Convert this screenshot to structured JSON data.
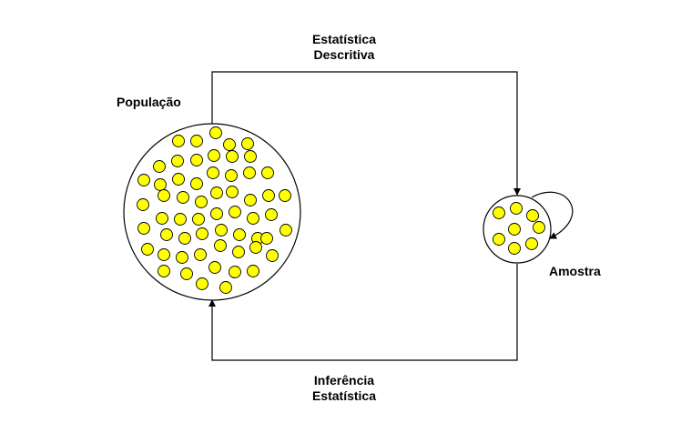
{
  "labels": {
    "descriptive_line1": "Estatística",
    "descriptive_line2": "Descritiva",
    "population": "População",
    "sample": "Amostra",
    "inference_line1": "Inferência",
    "inference_line2": "Estatística"
  },
  "colors": {
    "dot_fill": "#ffff00",
    "stroke": "#000000",
    "background": "#ffffff"
  },
  "population_dot_count": 63,
  "sample_dot_count": 8
}
